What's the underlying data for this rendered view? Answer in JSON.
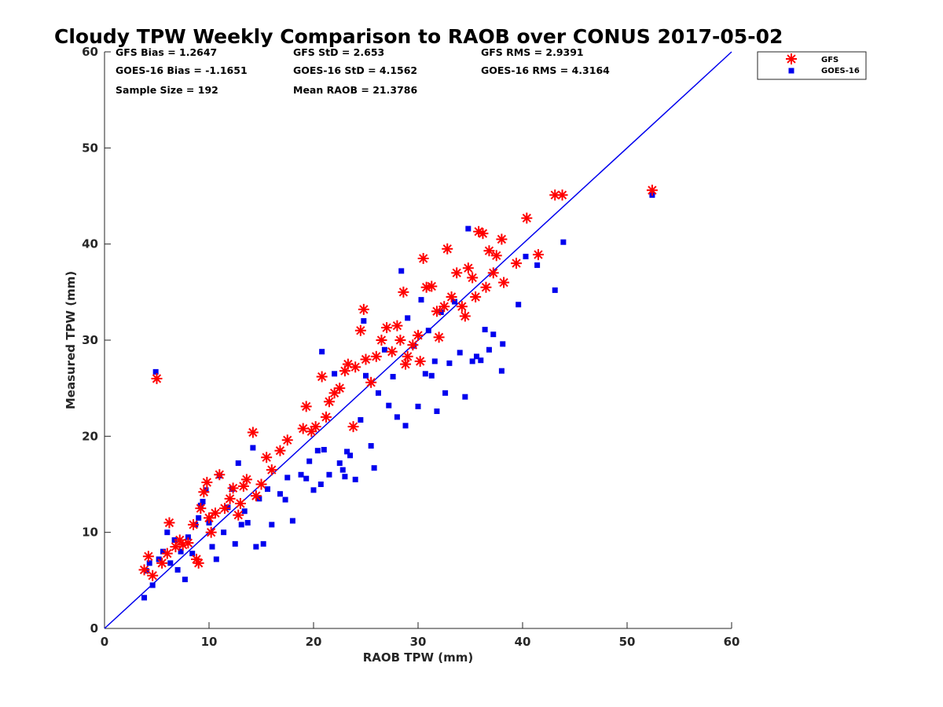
{
  "chart_data": {
    "type": "scatter",
    "title": "Cloudy TPW Weekly Comparison to RAOB over CONUS 2017-05-02",
    "xlabel": "RAOB TPW (mm)",
    "ylabel": "Measured TPW (mm)",
    "xlim": [
      0,
      60
    ],
    "ylim": [
      0,
      60
    ],
    "xticks": [
      "0",
      "10",
      "20",
      "30",
      "40",
      "50",
      "60"
    ],
    "yticks": [
      "0",
      "10",
      "20",
      "30",
      "40",
      "50",
      "60"
    ],
    "grid": false,
    "legend_position": "top-right, outside plot area",
    "reference_line": {
      "x": [
        0,
        60
      ],
      "y": [
        0,
        60
      ],
      "color": "#0000ee"
    },
    "stats": [
      [
        "GFS Bias = 1.2647",
        "GFS StD = 2.653",
        "GFS RMS = 2.9391"
      ],
      [
        "GOES-16 Bias = -1.1651",
        "GOES-16 StD = 4.1562",
        "GOES-16 RMS = 4.3164"
      ],
      [
        "Sample Size = 192",
        "Mean RAOB = 21.3786"
      ]
    ],
    "series": [
      {
        "name": "GFS",
        "marker": "asterisk",
        "color": "#ff0000",
        "points": [
          [
            3.8,
            6.1
          ],
          [
            4.2,
            7.5
          ],
          [
            4.6,
            5.5
          ],
          [
            5.0,
            26.0
          ],
          [
            5.5,
            6.8
          ],
          [
            6.0,
            7.8
          ],
          [
            6.2,
            11.0
          ],
          [
            6.8,
            8.5
          ],
          [
            7.2,
            9.2
          ],
          [
            7.5,
            8.7
          ],
          [
            8.0,
            8.9
          ],
          [
            8.5,
            10.8
          ],
          [
            8.8,
            7.2
          ],
          [
            9.0,
            6.8
          ],
          [
            9.2,
            12.5
          ],
          [
            9.5,
            14.2
          ],
          [
            9.8,
            15.2
          ],
          [
            10.0,
            11.5
          ],
          [
            10.2,
            10.0
          ],
          [
            10.6,
            12.0
          ],
          [
            11.0,
            16.0
          ],
          [
            11.5,
            12.5
          ],
          [
            12.0,
            13.5
          ],
          [
            12.3,
            14.6
          ],
          [
            12.8,
            11.8
          ],
          [
            13.0,
            13.0
          ],
          [
            13.3,
            14.8
          ],
          [
            13.6,
            15.5
          ],
          [
            14.2,
            20.4
          ],
          [
            14.5,
            13.8
          ],
          [
            15.0,
            15.0
          ],
          [
            15.5,
            17.8
          ],
          [
            16.0,
            16.5
          ],
          [
            16.8,
            18.5
          ],
          [
            17.5,
            19.6
          ],
          [
            19.0,
            20.8
          ],
          [
            19.3,
            23.1
          ],
          [
            19.8,
            20.5
          ],
          [
            20.2,
            21.0
          ],
          [
            20.8,
            26.2
          ],
          [
            21.2,
            22.0
          ],
          [
            21.5,
            23.6
          ],
          [
            22.0,
            24.5
          ],
          [
            22.5,
            25.0
          ],
          [
            23.0,
            26.8
          ],
          [
            23.3,
            27.5
          ],
          [
            23.8,
            21.0
          ],
          [
            24.0,
            27.2
          ],
          [
            24.5,
            31.0
          ],
          [
            24.8,
            33.2
          ],
          [
            25.0,
            28.0
          ],
          [
            25.5,
            25.6
          ],
          [
            26.0,
            28.3
          ],
          [
            26.5,
            30.0
          ],
          [
            27.0,
            31.3
          ],
          [
            27.5,
            28.8
          ],
          [
            28.0,
            31.5
          ],
          [
            28.3,
            30.0
          ],
          [
            28.6,
            35.0
          ],
          [
            28.8,
            27.5
          ],
          [
            29.0,
            28.3
          ],
          [
            29.5,
            29.5
          ],
          [
            30.0,
            30.5
          ],
          [
            30.2,
            27.8
          ],
          [
            30.5,
            38.5
          ],
          [
            30.8,
            35.5
          ],
          [
            31.3,
            35.6
          ],
          [
            31.8,
            33.0
          ],
          [
            32.0,
            30.3
          ],
          [
            32.5,
            33.5
          ],
          [
            32.8,
            39.5
          ],
          [
            33.2,
            34.5
          ],
          [
            33.7,
            37.0
          ],
          [
            34.2,
            33.5
          ],
          [
            34.5,
            32.5
          ],
          [
            34.8,
            37.5
          ],
          [
            35.2,
            36.5
          ],
          [
            35.5,
            34.5
          ],
          [
            35.8,
            41.3
          ],
          [
            36.2,
            41.1
          ],
          [
            36.5,
            35.5
          ],
          [
            36.8,
            39.3
          ],
          [
            37.2,
            37.0
          ],
          [
            37.5,
            38.8
          ],
          [
            38.0,
            40.5
          ],
          [
            38.2,
            36.0
          ],
          [
            39.4,
            38.0
          ],
          [
            40.4,
            42.7
          ],
          [
            41.5,
            38.9
          ],
          [
            43.1,
            45.1
          ],
          [
            43.8,
            45.1
          ],
          [
            52.4,
            45.6
          ]
        ]
      },
      {
        "name": "GOES-16",
        "marker": "square",
        "color": "#0000ee",
        "points": [
          [
            3.8,
            3.2
          ],
          [
            4.0,
            6.0
          ],
          [
            4.3,
            6.8
          ],
          [
            4.6,
            4.5
          ],
          [
            4.9,
            26.7
          ],
          [
            5.2,
            7.2
          ],
          [
            5.6,
            8.0
          ],
          [
            6.0,
            10.0
          ],
          [
            6.3,
            6.8
          ],
          [
            6.7,
            9.2
          ],
          [
            7.0,
            6.1
          ],
          [
            7.3,
            8.0
          ],
          [
            7.7,
            5.1
          ],
          [
            8.0,
            9.5
          ],
          [
            8.4,
            7.8
          ],
          [
            8.7,
            10.8
          ],
          [
            9.0,
            11.5
          ],
          [
            9.2,
            12.8
          ],
          [
            9.4,
            13.2
          ],
          [
            9.7,
            14.4
          ],
          [
            10.0,
            11.0
          ],
          [
            10.3,
            8.5
          ],
          [
            10.7,
            7.2
          ],
          [
            11.0,
            15.9
          ],
          [
            11.4,
            10.0
          ],
          [
            11.8,
            12.6
          ],
          [
            12.2,
            14.5
          ],
          [
            12.5,
            8.8
          ],
          [
            12.8,
            17.2
          ],
          [
            13.1,
            10.8
          ],
          [
            13.4,
            12.2
          ],
          [
            13.7,
            11.0
          ],
          [
            14.2,
            18.8
          ],
          [
            14.5,
            8.5
          ],
          [
            14.8,
            13.5
          ],
          [
            15.2,
            8.8
          ],
          [
            15.6,
            14.5
          ],
          [
            16.0,
            10.8
          ],
          [
            16.8,
            14.0
          ],
          [
            17.3,
            13.4
          ],
          [
            17.5,
            15.7
          ],
          [
            18.0,
            11.2
          ],
          [
            18.8,
            16.0
          ],
          [
            19.3,
            15.6
          ],
          [
            19.6,
            17.4
          ],
          [
            20.0,
            14.4
          ],
          [
            20.4,
            18.5
          ],
          [
            20.7,
            15.0
          ],
          [
            20.8,
            28.8
          ],
          [
            21.0,
            18.6
          ],
          [
            21.5,
            16.0
          ],
          [
            22.0,
            26.5
          ],
          [
            22.5,
            17.2
          ],
          [
            22.8,
            16.5
          ],
          [
            23.0,
            15.8
          ],
          [
            23.2,
            18.4
          ],
          [
            23.5,
            18.0
          ],
          [
            24.0,
            15.5
          ],
          [
            24.5,
            21.7
          ],
          [
            24.8,
            32.0
          ],
          [
            25.0,
            26.3
          ],
          [
            25.5,
            19.0
          ],
          [
            25.8,
            16.7
          ],
          [
            26.2,
            24.5
          ],
          [
            26.8,
            29.0
          ],
          [
            27.2,
            23.2
          ],
          [
            27.6,
            26.2
          ],
          [
            28.0,
            22.0
          ],
          [
            28.4,
            37.2
          ],
          [
            28.8,
            21.1
          ],
          [
            29.0,
            32.3
          ],
          [
            29.6,
            29.4
          ],
          [
            30.0,
            23.1
          ],
          [
            30.3,
            34.2
          ],
          [
            30.7,
            26.5
          ],
          [
            31.0,
            31.0
          ],
          [
            31.3,
            26.3
          ],
          [
            31.6,
            27.8
          ],
          [
            31.8,
            22.6
          ],
          [
            32.2,
            32.9
          ],
          [
            32.6,
            24.5
          ],
          [
            33.0,
            27.6
          ],
          [
            33.5,
            34.0
          ],
          [
            34.0,
            28.7
          ],
          [
            34.5,
            24.1
          ],
          [
            34.8,
            41.6
          ],
          [
            35.2,
            27.8
          ],
          [
            35.6,
            28.3
          ],
          [
            36.0,
            27.9
          ],
          [
            36.4,
            31.1
          ],
          [
            36.8,
            29.0
          ],
          [
            37.2,
            30.6
          ],
          [
            38.0,
            26.8
          ],
          [
            38.1,
            29.6
          ],
          [
            39.6,
            33.7
          ],
          [
            40.3,
            38.7
          ],
          [
            41.4,
            37.8
          ],
          [
            43.1,
            35.2
          ],
          [
            43.9,
            40.2
          ],
          [
            52.4,
            45.1
          ]
        ]
      }
    ]
  }
}
